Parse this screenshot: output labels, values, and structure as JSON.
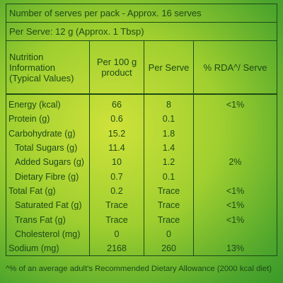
{
  "header": {
    "lines": [
      "Number of serves per pack - Approx. 16 serves",
      "Per Serve: 12 g (Approx. 1 Tbsp)"
    ]
  },
  "table": {
    "columns": [
      "Nutrition Information (Typical Values)",
      "Per 100 g product",
      "Per Serve",
      "% RDA^/ Serve"
    ],
    "rows": [
      {
        "name": "Energy (kcal)",
        "cells": [
          "66",
          "8",
          "<1%"
        ]
      },
      {
        "name": "Protein (g)",
        "cells": [
          "0.6",
          "0.1"
        ]
      },
      {
        "name": "Carbohydrate (g)",
        "cells": [
          "15.2",
          "1.8"
        ]
      },
      {
        "name": "Total Sugars (g)",
        "sub": true,
        "cells": [
          "11.4",
          "1.4"
        ]
      },
      {
        "name": "Added Sugars (g)",
        "sub": true,
        "cells": [
          "10",
          "1.2",
          "2%"
        ]
      },
      {
        "name": "Dietary Fibre (g)",
        "sub": true,
        "cells": [
          "0.7",
          "0.1"
        ]
      },
      {
        "name": "Total Fat (g)",
        "cells": [
          "0.2",
          "Trace",
          "<1%"
        ]
      },
      {
        "name": "Saturated Fat (g)",
        "sub": true,
        "cells": [
          "Trace",
          "Trace",
          "<1%"
        ]
      },
      {
        "name": "Trans Fat (g)",
        "sub": true,
        "cells": [
          "Trace",
          "Trace",
          "<1%"
        ]
      },
      {
        "name": "Cholesterol (mg)",
        "sub": true,
        "cells": [
          "0",
          "0"
        ]
      },
      {
        "name": "Sodium (mg)",
        "cells": [
          "2168",
          "260",
          "13%"
        ]
      }
    ]
  },
  "footnote": "^% of an average adult's Recommended Dietary Allowance (2000 kcal diet)"
}
